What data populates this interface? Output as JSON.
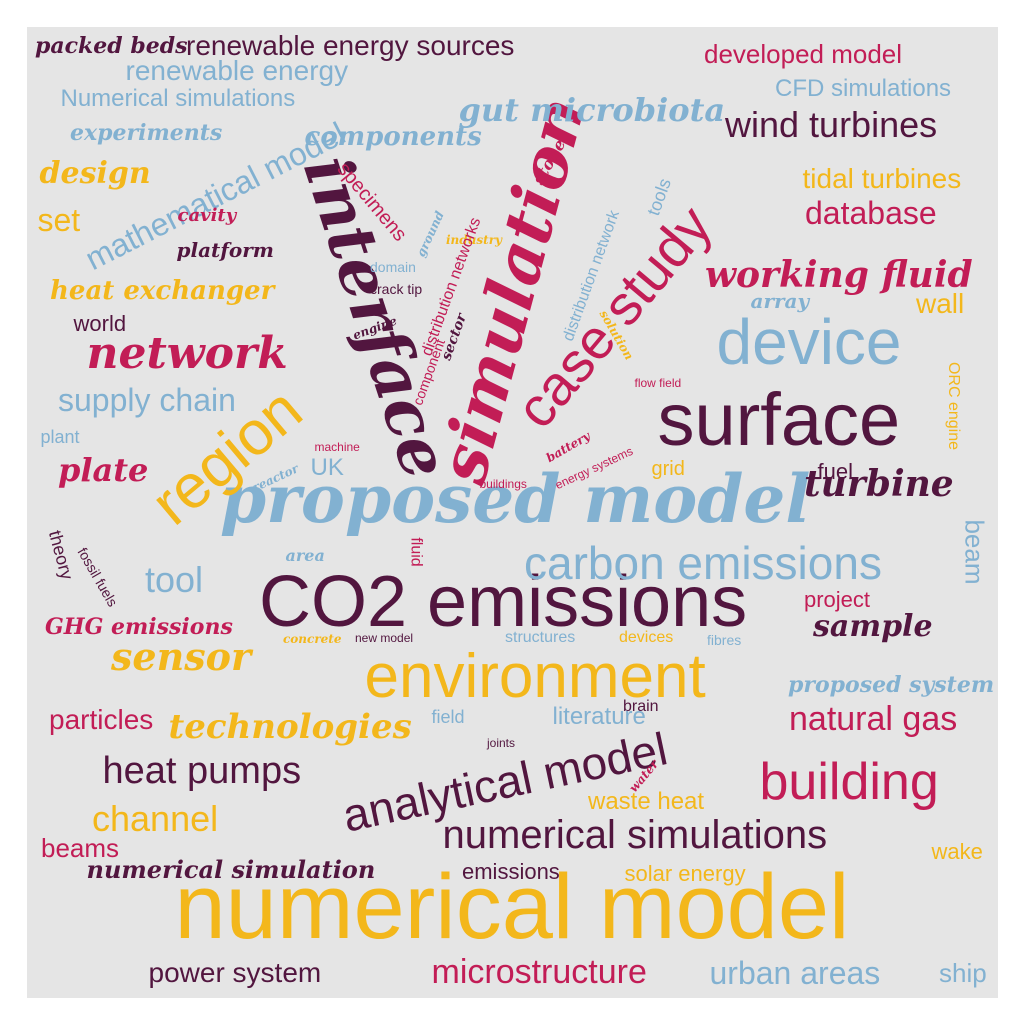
{
  "palette": {
    "plum": "#52163f",
    "crimson": "#c21d56",
    "gold": "#f3b71b",
    "steel": "#82b1d1"
  },
  "background": "#e5e5e5",
  "words": [
    {
      "text": "numerical model",
      "color": "gold",
      "style": "sans"
    },
    {
      "text": "CO2 emissions",
      "color": "plum",
      "style": "sans"
    },
    {
      "text": "surface",
      "color": "plum",
      "style": "sans"
    },
    {
      "text": "environment",
      "color": "gold",
      "style": "sans"
    },
    {
      "text": "proposed model",
      "color": "steel",
      "style": "script"
    },
    {
      "text": "simulation",
      "color": "crimson",
      "style": "script"
    },
    {
      "text": "interface",
      "color": "plum",
      "style": "script"
    },
    {
      "text": "device",
      "color": "steel",
      "style": "sans"
    },
    {
      "text": "case study",
      "color": "crimson",
      "style": "sans"
    },
    {
      "text": "region",
      "color": "gold",
      "style": "sans"
    },
    {
      "text": "building",
      "color": "crimson",
      "style": "sans"
    },
    {
      "text": "analytical model",
      "color": "plum",
      "style": "sans"
    },
    {
      "text": "carbon emissions",
      "color": "steel",
      "style": "sans"
    },
    {
      "text": "numerical simulations",
      "color": "plum",
      "style": "sans"
    },
    {
      "text": "microstructure",
      "color": "crimson",
      "style": "sans"
    },
    {
      "text": "network",
      "color": "crimson",
      "style": "script"
    },
    {
      "text": "mathematical model",
      "color": "steel",
      "style": "sans"
    },
    {
      "text": "wind turbines",
      "color": "plum",
      "style": "sans"
    },
    {
      "text": "heat pumps",
      "color": "plum",
      "style": "sans"
    },
    {
      "text": "natural gas",
      "color": "crimson",
      "style": "sans"
    },
    {
      "text": "urban areas",
      "color": "steel",
      "style": "sans"
    },
    {
      "text": "power system",
      "color": "plum",
      "style": "sans"
    },
    {
      "text": "turbine",
      "color": "plum",
      "style": "script"
    },
    {
      "text": "sensor",
      "color": "gold",
      "style": "script"
    },
    {
      "text": "working fluid",
      "color": "crimson",
      "style": "script"
    },
    {
      "text": "gut microbiota",
      "color": "steel",
      "style": "script"
    },
    {
      "text": "technologies",
      "color": "gold",
      "style": "script"
    },
    {
      "text": "channel",
      "color": "gold",
      "style": "sans"
    },
    {
      "text": "database",
      "color": "crimson",
      "style": "sans"
    },
    {
      "text": "sample",
      "color": "plum",
      "style": "script"
    },
    {
      "text": "tool",
      "color": "steel",
      "style": "sans"
    },
    {
      "text": "particles",
      "color": "crimson",
      "style": "sans"
    },
    {
      "text": "supply chain",
      "color": "steel",
      "style": "sans"
    },
    {
      "text": "tidal turbines",
      "color": "gold",
      "style": "sans"
    },
    {
      "text": "renewable energy sources",
      "color": "plum",
      "style": "sans"
    },
    {
      "text": "renewable energy",
      "color": "steel",
      "style": "sans"
    },
    {
      "text": "developed model",
      "color": "crimson",
      "style": "sans"
    },
    {
      "text": "CFD simulations",
      "color": "steel",
      "style": "sans"
    },
    {
      "text": "Numerical simulations",
      "color": "steel",
      "style": "sans"
    },
    {
      "text": "components",
      "color": "steel",
      "style": "script"
    },
    {
      "text": "design",
      "color": "gold",
      "style": "script"
    },
    {
      "text": "set",
      "color": "gold",
      "style": "sans"
    },
    {
      "text": "heat exchanger",
      "color": "gold",
      "style": "script"
    },
    {
      "text": "plate",
      "color": "crimson",
      "style": "script"
    },
    {
      "text": "wall",
      "color": "gold",
      "style": "sans"
    },
    {
      "text": "literature",
      "color": "steel",
      "style": "sans"
    },
    {
      "text": "beams",
      "color": "crimson",
      "style": "sans"
    },
    {
      "text": "waste heat",
      "color": "gold",
      "style": "sans"
    },
    {
      "text": "wake",
      "color": "gold",
      "style": "sans"
    },
    {
      "text": "ship",
      "color": "steel",
      "style": "sans"
    },
    {
      "text": "solar energy",
      "color": "gold",
      "style": "sans"
    },
    {
      "text": "emissions",
      "color": "plum",
      "style": "sans"
    },
    {
      "text": "numerical simulation",
      "color": "plum",
      "style": "script"
    },
    {
      "text": "proposed system",
      "color": "steel",
      "style": "script"
    },
    {
      "text": "GHG emissions",
      "color": "crimson",
      "style": "script"
    },
    {
      "text": "project",
      "color": "crimson",
      "style": "sans"
    },
    {
      "text": "beam",
      "color": "steel",
      "style": "sans"
    },
    {
      "text": "UK",
      "color": "steel",
      "style": "sans"
    },
    {
      "text": "fuel",
      "color": "plum",
      "style": "sans"
    },
    {
      "text": "grid",
      "color": "gold",
      "style": "sans"
    },
    {
      "text": "world",
      "color": "plum",
      "style": "sans"
    },
    {
      "text": "plant",
      "color": "steel",
      "style": "sans"
    },
    {
      "text": "experiments",
      "color": "steel",
      "style": "script"
    },
    {
      "text": "packed beds",
      "color": "plum",
      "style": "script"
    },
    {
      "text": "platform",
      "color": "plum",
      "style": "script"
    },
    {
      "text": "cavity",
      "color": "crimson",
      "style": "script"
    },
    {
      "text": "specimens",
      "color": "crimson",
      "style": "sans"
    },
    {
      "text": "stone",
      "color": "crimson",
      "style": "script"
    },
    {
      "text": "ground",
      "color": "steel",
      "style": "script"
    },
    {
      "text": "industry",
      "color": "gold",
      "style": "script"
    },
    {
      "text": "distribution networks",
      "color": "crimson",
      "style": "sans"
    },
    {
      "text": "distribution network",
      "color": "steel",
      "style": "sans"
    },
    {
      "text": "tools",
      "color": "steel",
      "style": "sans"
    },
    {
      "text": "array",
      "color": "steel",
      "style": "script"
    },
    {
      "text": "domain",
      "color": "steel",
      "style": "sans"
    },
    {
      "text": "crack tip",
      "color": "plum",
      "style": "sans"
    },
    {
      "text": "engine",
      "color": "plum",
      "style": "script"
    },
    {
      "text": "sector",
      "color": "plum",
      "style": "script"
    },
    {
      "text": "solution",
      "color": "gold",
      "style": "script"
    },
    {
      "text": "component",
      "color": "crimson",
      "style": "sans"
    },
    {
      "text": "flow field",
      "color": "crimson",
      "style": "sans"
    },
    {
      "text": "ORC engine",
      "color": "gold",
      "style": "sans"
    },
    {
      "text": "machine",
      "color": "crimson",
      "style": "sans"
    },
    {
      "text": "reactor",
      "color": "steel",
      "style": "script"
    },
    {
      "text": "battery",
      "color": "crimson",
      "style": "script"
    },
    {
      "text": "energy systems",
      "color": "crimson",
      "style": "sans"
    },
    {
      "text": "buildings",
      "color": "crimson",
      "style": "sans"
    },
    {
      "text": "theory",
      "color": "plum",
      "style": "sans"
    },
    {
      "text": "fossil fuels",
      "color": "plum",
      "style": "sans"
    },
    {
      "text": "area",
      "color": "steel",
      "style": "script"
    },
    {
      "text": "fluid",
      "color": "crimson",
      "style": "sans"
    },
    {
      "text": "concrete",
      "color": "gold",
      "style": "script"
    },
    {
      "text": "new model",
      "color": "plum",
      "style": "sans"
    },
    {
      "text": "structures",
      "color": "steel",
      "style": "sans"
    },
    {
      "text": "devices",
      "color": "gold",
      "style": "sans"
    },
    {
      "text": "fibres",
      "color": "steel",
      "style": "sans"
    },
    {
      "text": "field",
      "color": "steel",
      "style": "sans"
    },
    {
      "text": "brain",
      "color": "plum",
      "style": "sans"
    },
    {
      "text": "joints",
      "color": "plum",
      "style": "sans"
    },
    {
      "text": "water",
      "color": "crimson",
      "style": "script"
    }
  ]
}
